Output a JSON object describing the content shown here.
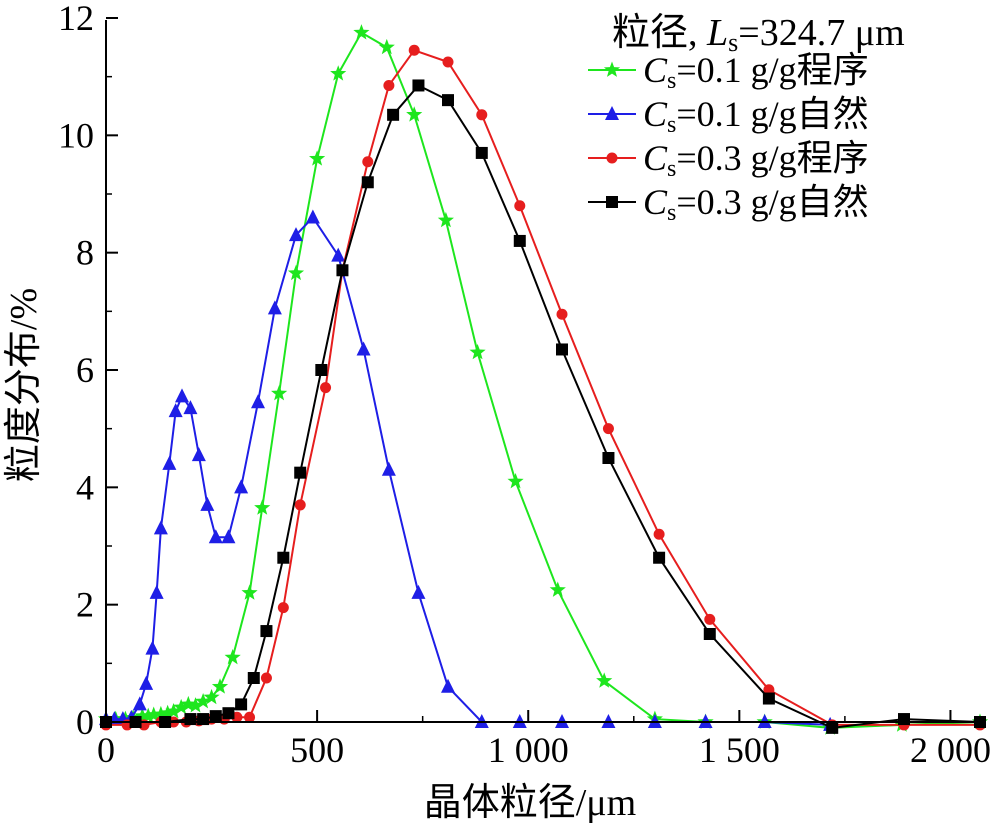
{
  "chart_data": {
    "type": "line",
    "title": "",
    "xlabel": "晶体粒径/μm",
    "ylabel": "粒度分布/%",
    "xlim": [
      0,
      2070
    ],
    "ylim": [
      0,
      12
    ],
    "x_ticks": [
      0,
      500,
      1000,
      1500,
      2000
    ],
    "x_tick_labels": [
      "0",
      "500",
      "1 000",
      "1 500",
      "2 000"
    ],
    "y_ticks": [
      0,
      2,
      4,
      6,
      8,
      10,
      12
    ],
    "y_tick_labels": [
      "0",
      "2",
      "4",
      "6",
      "8",
      "10",
      "12"
    ],
    "grid": false,
    "legend": {
      "position": "top-right",
      "heading_prefix": "粒径, ",
      "heading_var": "L",
      "heading_sub": "s",
      "heading_value": "=324.7 μm"
    },
    "series": [
      {
        "name": "Cs=0.1 g/g程序",
        "label_var": "C",
        "label_sub": "s",
        "label_rest": "=0.1 g/g程序",
        "color": "#1ee61e",
        "marker": "star",
        "points": [
          [
            0,
            0.05
          ],
          [
            23,
            0.05
          ],
          [
            46,
            0.05
          ],
          [
            64,
            0.07
          ],
          [
            86,
            0.1
          ],
          [
            100,
            0.1
          ],
          [
            113,
            0.12
          ],
          [
            130,
            0.13
          ],
          [
            146,
            0.15
          ],
          [
            160,
            0.18
          ],
          [
            178,
            0.25
          ],
          [
            195,
            0.3
          ],
          [
            212,
            0.28
          ],
          [
            230,
            0.35
          ],
          [
            250,
            0.42
          ],
          [
            270,
            0.6
          ],
          [
            300,
            1.1
          ],
          [
            340,
            2.2
          ],
          [
            370,
            3.65
          ],
          [
            410,
            5.6
          ],
          [
            450,
            7.65
          ],
          [
            500,
            9.6
          ],
          [
            550,
            11.05
          ],
          [
            605,
            11.75
          ],
          [
            665,
            11.5
          ],
          [
            730,
            10.35
          ],
          [
            805,
            8.55
          ],
          [
            880,
            6.3
          ],
          [
            970,
            4.1
          ],
          [
            1070,
            2.25
          ],
          [
            1180,
            0.7
          ],
          [
            1300,
            0.05
          ],
          [
            1420,
            0.0
          ],
          [
            1560,
            0.0
          ],
          [
            1715,
            -0.1
          ],
          [
            1885,
            -0.05
          ],
          [
            2070,
            0.0
          ]
        ]
      },
      {
        "name": "Cs=0.1 g/g自然",
        "label_var": "C",
        "label_sub": "s",
        "label_rest": "=0.1 g/g自然",
        "color": "#1e1ee6",
        "marker": "triangle",
        "points": [
          [
            0,
            0.05
          ],
          [
            20,
            0.05
          ],
          [
            40,
            0.05
          ],
          [
            60,
            0.07
          ],
          [
            80,
            0.3
          ],
          [
            95,
            0.65
          ],
          [
            110,
            1.25
          ],
          [
            120,
            2.2
          ],
          [
            130,
            3.3
          ],
          [
            150,
            4.4
          ],
          [
            165,
            5.3
          ],
          [
            180,
            5.55
          ],
          [
            200,
            5.35
          ],
          [
            220,
            4.55
          ],
          [
            240,
            3.7
          ],
          [
            260,
            3.15
          ],
          [
            290,
            3.15
          ],
          [
            320,
            4.0
          ],
          [
            360,
            5.45
          ],
          [
            400,
            7.05
          ],
          [
            450,
            8.3
          ],
          [
            490,
            8.6
          ],
          [
            550,
            7.95
          ],
          [
            610,
            6.35
          ],
          [
            670,
            4.3
          ],
          [
            740,
            2.2
          ],
          [
            810,
            0.6
          ],
          [
            890,
            0.0
          ],
          [
            980,
            0.0
          ],
          [
            1080,
            0.0
          ],
          [
            1190,
            0.0
          ],
          [
            1300,
            0.0
          ],
          [
            1420,
            0.0
          ],
          [
            1560,
            0.0
          ],
          [
            1715,
            -0.05
          ]
        ]
      },
      {
        "name": "Cs=0.3 g/g程序",
        "label_var": "C",
        "label_sub": "s",
        "label_rest": "=0.3 g/g程序",
        "color": "#e61e1e",
        "marker": "circle",
        "points": [
          [
            0,
            -0.05
          ],
          [
            50,
            -0.05
          ],
          [
            90,
            -0.05
          ],
          [
            130,
            0.0
          ],
          [
            160,
            0.0
          ],
          [
            190,
            0.0
          ],
          [
            220,
            0.02
          ],
          [
            250,
            0.05
          ],
          [
            280,
            0.05
          ],
          [
            310,
            0.08
          ],
          [
            340,
            0.08
          ],
          [
            380,
            0.75
          ],
          [
            420,
            1.95
          ],
          [
            460,
            3.7
          ],
          [
            520,
            5.7
          ],
          [
            560,
            7.7
          ],
          [
            620,
            9.55
          ],
          [
            670,
            10.85
          ],
          [
            730,
            11.45
          ],
          [
            810,
            11.25
          ],
          [
            890,
            10.35
          ],
          [
            980,
            8.8
          ],
          [
            1080,
            6.95
          ],
          [
            1190,
            5.0
          ],
          [
            1310,
            3.2
          ],
          [
            1430,
            1.75
          ],
          [
            1570,
            0.55
          ],
          [
            1720,
            -0.05
          ],
          [
            1890,
            -0.05
          ],
          [
            2070,
            -0.05
          ]
        ]
      },
      {
        "name": "Cs=0.3 g/g自然",
        "label_var": "C",
        "label_sub": "s",
        "label_rest": "=0.3 g/g自然",
        "color": "#000000",
        "marker": "square",
        "points": [
          [
            0,
            0.0
          ],
          [
            70,
            0.0
          ],
          [
            140,
            0.0
          ],
          [
            200,
            0.05
          ],
          [
            230,
            0.05
          ],
          [
            260,
            0.1
          ],
          [
            290,
            0.15
          ],
          [
            320,
            0.3
          ],
          [
            350,
            0.75
          ],
          [
            380,
            1.55
          ],
          [
            420,
            2.8
          ],
          [
            460,
            4.25
          ],
          [
            510,
            6.0
          ],
          [
            560,
            7.7
          ],
          [
            620,
            9.2
          ],
          [
            680,
            10.35
          ],
          [
            740,
            10.85
          ],
          [
            810,
            10.6
          ],
          [
            890,
            9.7
          ],
          [
            980,
            8.2
          ],
          [
            1080,
            6.35
          ],
          [
            1190,
            4.5
          ],
          [
            1310,
            2.8
          ],
          [
            1430,
            1.5
          ],
          [
            1570,
            0.4
          ],
          [
            1720,
            -0.1
          ],
          [
            1890,
            0.05
          ],
          [
            2070,
            0.0
          ]
        ]
      }
    ]
  }
}
